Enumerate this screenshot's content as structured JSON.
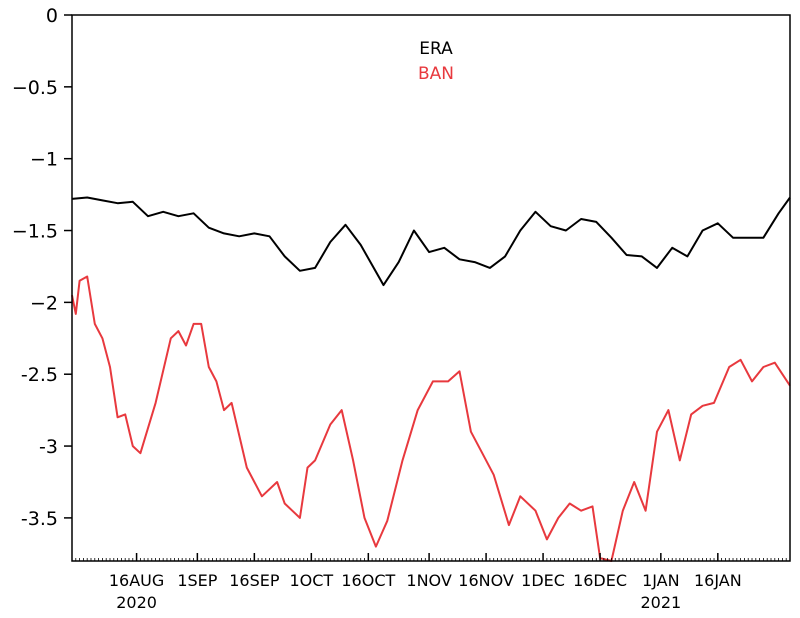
{
  "chart_data": {
    "type": "line",
    "title": "",
    "xlabel": "",
    "ylabel": "",
    "ylim": [
      -3.8,
      0
    ],
    "xlim": [
      "2020-07-30",
      "2021-02-04"
    ],
    "grid": false,
    "legend_position": "top-center",
    "y_ticks": [
      "0",
      "−0.5",
      "−1",
      "−1.5",
      "−2",
      "-2.5",
      "-3",
      "-3.5"
    ],
    "x_ticks": [
      {
        "date": "2020-08-16",
        "label": "16AUG",
        "year": "2020"
      },
      {
        "date": "2020-09-01",
        "label": "1SEP",
        "year": ""
      },
      {
        "date": "2020-09-16",
        "label": "16SEP",
        "year": ""
      },
      {
        "date": "2020-10-01",
        "label": "1OCT",
        "year": ""
      },
      {
        "date": "2020-10-16",
        "label": "16OCT",
        "year": ""
      },
      {
        "date": "2020-11-01",
        "label": "1NOV",
        "year": ""
      },
      {
        "date": "2020-11-16",
        "label": "16NOV",
        "year": ""
      },
      {
        "date": "2020-12-01",
        "label": "1DEC",
        "year": ""
      },
      {
        "date": "2020-12-16",
        "label": "16DEC",
        "year": ""
      },
      {
        "date": "2021-01-01",
        "label": "1JAN",
        "year": "2021"
      },
      {
        "date": "2021-01-16",
        "label": "16JAN",
        "year": ""
      }
    ],
    "series": [
      {
        "name": "ERA",
        "color": "#000000",
        "x": [
          "2020-07-30",
          "2020-08-03",
          "2020-08-07",
          "2020-08-11",
          "2020-08-15",
          "2020-08-19",
          "2020-08-23",
          "2020-08-27",
          "2020-08-31",
          "2020-09-04",
          "2020-09-08",
          "2020-09-12",
          "2020-09-16",
          "2020-09-20",
          "2020-09-24",
          "2020-09-28",
          "2020-10-02",
          "2020-10-06",
          "2020-10-10",
          "2020-10-14",
          "2020-10-17",
          "2020-10-20",
          "2020-10-24",
          "2020-10-28",
          "2020-11-01",
          "2020-11-05",
          "2020-11-09",
          "2020-11-13",
          "2020-11-17",
          "2020-11-21",
          "2020-11-25",
          "2020-11-29",
          "2020-12-03",
          "2020-12-07",
          "2020-12-11",
          "2020-12-15",
          "2020-12-19",
          "2020-12-23",
          "2020-12-27",
          "2020-12-31",
          "2021-01-04",
          "2021-01-08",
          "2021-01-12",
          "2021-01-16",
          "2021-01-20",
          "2021-01-24",
          "2021-01-28",
          "2021-02-01",
          "2021-02-04"
        ],
        "values": [
          -1.28,
          -1.27,
          -1.29,
          -1.31,
          -1.3,
          -1.4,
          -1.37,
          -1.4,
          -1.38,
          -1.48,
          -1.52,
          -1.54,
          -1.52,
          -1.54,
          -1.68,
          -1.78,
          -1.76,
          -1.58,
          -1.46,
          -1.6,
          -1.74,
          -1.88,
          -1.72,
          -1.5,
          -1.65,
          -1.62,
          -1.7,
          -1.72,
          -1.76,
          -1.68,
          -1.5,
          -1.37,
          -1.47,
          -1.5,
          -1.42,
          -1.44,
          -1.55,
          -1.67,
          -1.68,
          -1.76,
          -1.62,
          -1.68,
          -1.5,
          -1.45,
          -1.55,
          -1.55,
          -1.55,
          -1.38,
          -1.27
        ]
      },
      {
        "name": "BAN",
        "color": "#e8393e",
        "x": [
          "2020-07-30",
          "2020-07-31",
          "2020-08-01",
          "2020-08-03",
          "2020-08-05",
          "2020-08-07",
          "2020-08-09",
          "2020-08-11",
          "2020-08-13",
          "2020-08-15",
          "2020-08-17",
          "2020-08-21",
          "2020-08-25",
          "2020-08-27",
          "2020-08-29",
          "2020-08-31",
          "2020-09-02",
          "2020-09-04",
          "2020-09-06",
          "2020-09-08",
          "2020-09-10",
          "2020-09-14",
          "2020-09-18",
          "2020-09-22",
          "2020-09-24",
          "2020-09-26",
          "2020-09-28",
          "2020-09-30",
          "2020-10-02",
          "2020-10-06",
          "2020-10-09",
          "2020-10-12",
          "2020-10-15",
          "2020-10-18",
          "2020-10-21",
          "2020-10-25",
          "2020-10-29",
          "2020-11-02",
          "2020-11-06",
          "2020-11-09",
          "2020-11-12",
          "2020-11-15",
          "2020-11-18",
          "2020-11-22",
          "2020-11-25",
          "2020-11-29",
          "2020-12-02",
          "2020-12-05",
          "2020-12-08",
          "2020-12-11",
          "2020-12-14",
          "2020-12-16",
          "2020-12-19",
          "2020-12-22",
          "2020-12-25",
          "2020-12-28",
          "2020-12-31",
          "2021-01-03",
          "2021-01-06",
          "2021-01-09",
          "2021-01-12",
          "2021-01-15",
          "2021-01-19",
          "2021-01-22",
          "2021-01-25",
          "2021-01-28",
          "2021-01-31",
          "2021-02-04"
        ],
        "values": [
          -1.95,
          -2.08,
          -1.85,
          -1.82,
          -2.15,
          -2.25,
          -2.45,
          -2.8,
          -2.78,
          -3.0,
          -3.05,
          -2.7,
          -2.25,
          -2.2,
          -2.3,
          -2.15,
          -2.15,
          -2.45,
          -2.55,
          -2.75,
          -2.7,
          -3.15,
          -3.35,
          -3.25,
          -3.4,
          -3.45,
          -3.5,
          -3.15,
          -3.1,
          -2.85,
          -2.75,
          -3.1,
          -3.5,
          -3.7,
          -3.52,
          -3.1,
          -2.75,
          -2.55,
          -2.55,
          -2.48,
          -2.9,
          -3.05,
          -3.2,
          -3.55,
          -3.35,
          -3.45,
          -3.65,
          -3.5,
          -3.4,
          -3.45,
          -3.42,
          -3.78,
          -3.8,
          -3.45,
          -3.25,
          -3.45,
          -2.9,
          -2.75,
          -3.1,
          -2.78,
          -2.72,
          -2.7,
          -2.45,
          -2.4,
          -2.55,
          -2.45,
          -2.42,
          -2.58
        ]
      }
    ]
  }
}
